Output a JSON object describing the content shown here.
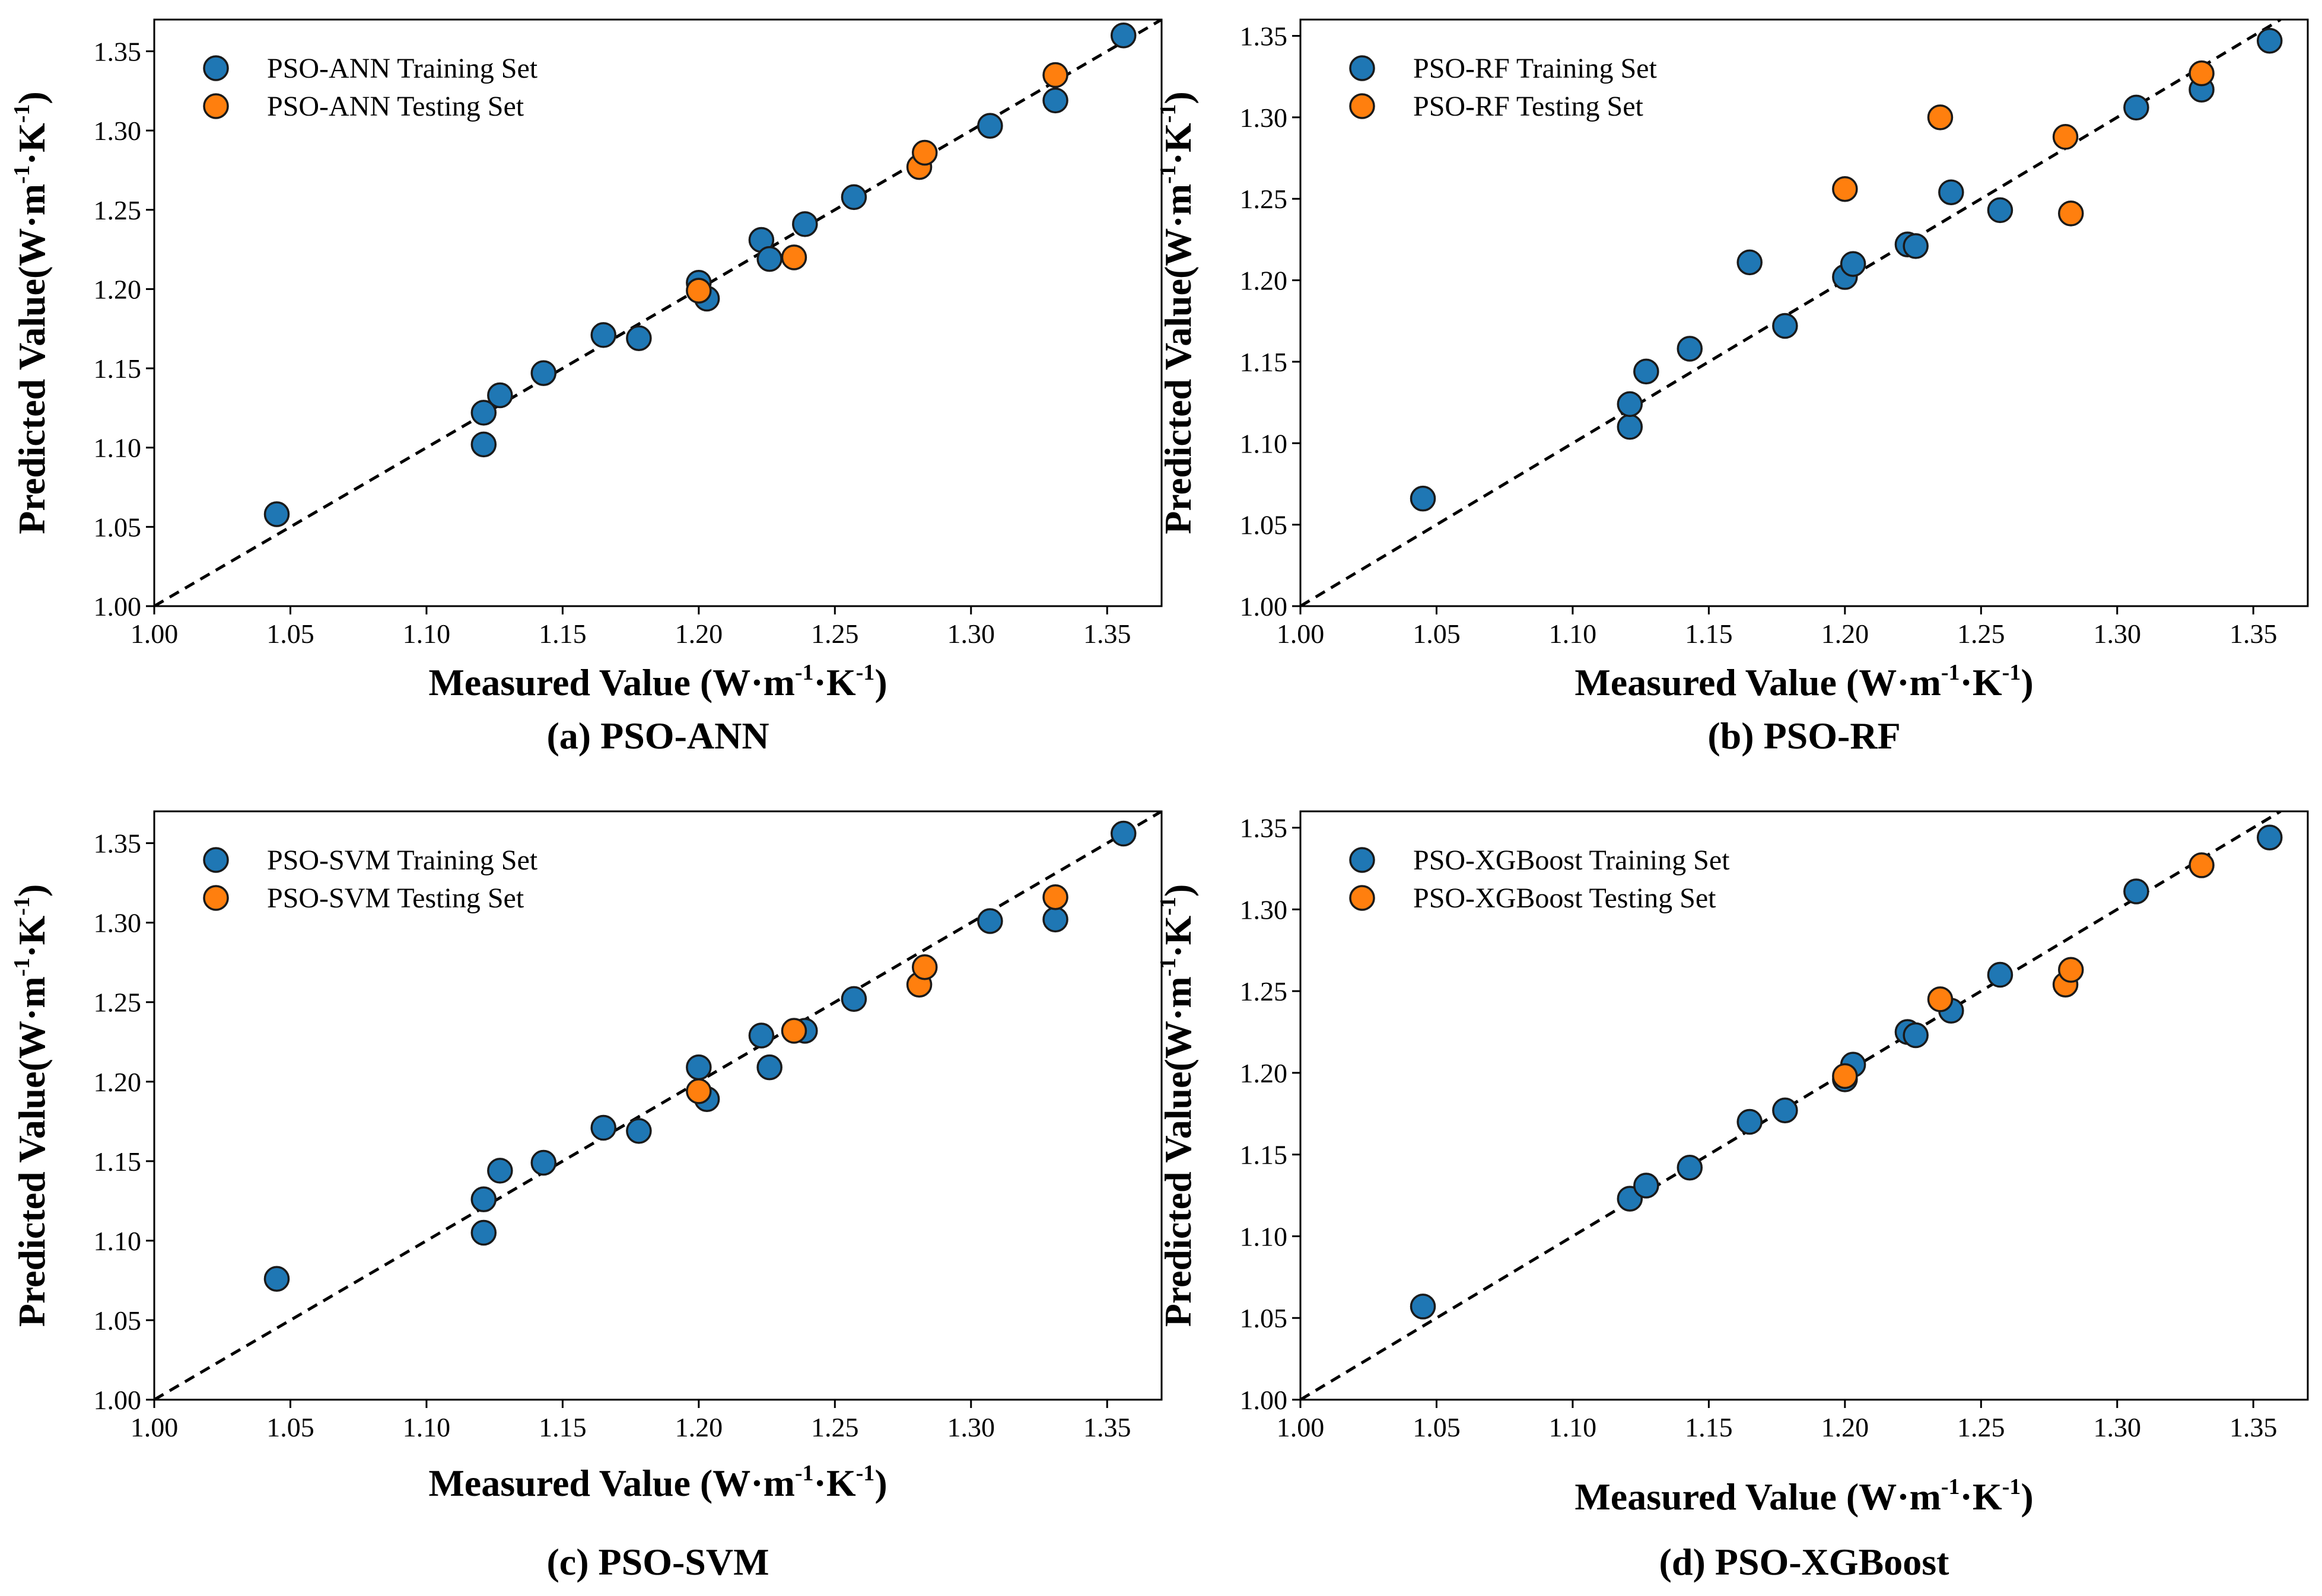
{
  "colors": {
    "train": "#1f77b4",
    "test": "#ff7f0e",
    "edge": "#1a1a1a",
    "diag": "#000000"
  },
  "chart_data": [
    {
      "type": "scatter",
      "caption": "(a) PSO-ANN",
      "xlabel": {
        "main": "Measured Value (W·m",
        "sup1": "-1",
        "mid": "·K",
        "sup2": "-1",
        "end": ")"
      },
      "ylabel": {
        "main": "Predicted Value(W·m",
        "sup1": "-1",
        "mid": "·K",
        "sup2": "-1",
        "end": ")"
      },
      "xlim": [
        1.0,
        1.37
      ],
      "ylim": [
        1.0,
        1.37
      ],
      "xticks": [
        "1.00",
        "1.05",
        "1.10",
        "1.15",
        "1.20",
        "1.25",
        "1.30",
        "1.35"
      ],
      "yticks": [
        "1.00",
        "1.05",
        "1.10",
        "1.15",
        "1.20",
        "1.25",
        "1.30",
        "1.35"
      ],
      "reference_line": "y = x",
      "series": [
        {
          "name": "PSO-ANN Training Set",
          "color": "#1f77b4",
          "points": [
            [
              1.045,
              1.058
            ],
            [
              1.121,
              1.102
            ],
            [
              1.121,
              1.122
            ],
            [
              1.127,
              1.133
            ],
            [
              1.143,
              1.147
            ],
            [
              1.165,
              1.171
            ],
            [
              1.178,
              1.169
            ],
            [
              1.2,
              1.204
            ],
            [
              1.203,
              1.194
            ],
            [
              1.223,
              1.231
            ],
            [
              1.226,
              1.219
            ],
            [
              1.239,
              1.241
            ],
            [
              1.257,
              1.258
            ],
            [
              1.307,
              1.303
            ],
            [
              1.331,
              1.319
            ],
            [
              1.356,
              1.36
            ]
          ]
        },
        {
          "name": "PSO-ANN Testing Set",
          "color": "#ff7f0e",
          "points": [
            [
              1.2,
              1.199
            ],
            [
              1.235,
              1.22
            ],
            [
              1.281,
              1.277
            ],
            [
              1.283,
              1.286
            ],
            [
              1.331,
              1.335
            ]
          ]
        }
      ]
    },
    {
      "type": "scatter",
      "caption": "(b) PSO-RF",
      "xlabel": {
        "main": "Measured Value (W·m",
        "sup1": "-1",
        "mid": "·K",
        "sup2": "-1",
        "end": ")"
      },
      "ylabel": {
        "main": "Predicted Value(W·m",
        "sup1": "-1",
        "mid": "·K",
        "sup2": "-1",
        "end": ")"
      },
      "xlim": [
        1.0,
        1.37
      ],
      "ylim": [
        1.0,
        1.36
      ],
      "xticks": [
        "1.00",
        "1.05",
        "1.10",
        "1.15",
        "1.20",
        "1.25",
        "1.30",
        "1.35"
      ],
      "yticks": [
        "1.00",
        "1.05",
        "1.10",
        "1.15",
        "1.20",
        "1.25",
        "1.30",
        "1.35"
      ],
      "reference_line": "y = x",
      "series": [
        {
          "name": "PSO-RF Training Set",
          "color": "#1f77b4",
          "points": [
            [
              1.045,
              1.066
            ],
            [
              1.121,
              1.11
            ],
            [
              1.121,
              1.124
            ],
            [
              1.127,
              1.144
            ],
            [
              1.143,
              1.158
            ],
            [
              1.165,
              1.211
            ],
            [
              1.178,
              1.172
            ],
            [
              1.2,
              1.202
            ],
            [
              1.203,
              1.21
            ],
            [
              1.223,
              1.222
            ],
            [
              1.226,
              1.221
            ],
            [
              1.239,
              1.254
            ],
            [
              1.257,
              1.243
            ],
            [
              1.307,
              1.306
            ],
            [
              1.331,
              1.317
            ],
            [
              1.356,
              1.347
            ]
          ]
        },
        {
          "name": "PSO-RF Testing Set",
          "color": "#ff7f0e",
          "points": [
            [
              1.2,
              1.256
            ],
            [
              1.235,
              1.3
            ],
            [
              1.281,
              1.288
            ],
            [
              1.283,
              1.241
            ],
            [
              1.331,
              1.327
            ]
          ]
        }
      ]
    },
    {
      "type": "scatter",
      "caption": "(c) PSO-SVM",
      "xlabel": {
        "main": "Measured Value (W·m",
        "sup1": "-1",
        "mid": "·K",
        "sup2": "-1",
        "end": ")"
      },
      "ylabel": {
        "main": "Predicted Value(W·m",
        "sup1": "-1",
        "mid": "·K",
        "sup2": "-1",
        "end": ")"
      },
      "xlim": [
        1.0,
        1.37
      ],
      "ylim": [
        1.0,
        1.37
      ],
      "xticks": [
        "1.00",
        "1.05",
        "1.10",
        "1.15",
        "1.20",
        "1.25",
        "1.30",
        "1.35"
      ],
      "yticks": [
        "1.00",
        "1.05",
        "1.10",
        "1.15",
        "1.20",
        "1.25",
        "1.30",
        "1.35"
      ],
      "reference_line": "y = x",
      "series": [
        {
          "name": "PSO-SVM Training Set",
          "color": "#1f77b4",
          "points": [
            [
              1.045,
              1.076
            ],
            [
              1.121,
              1.105
            ],
            [
              1.121,
              1.126
            ],
            [
              1.127,
              1.144
            ],
            [
              1.143,
              1.149
            ],
            [
              1.165,
              1.171
            ],
            [
              1.178,
              1.169
            ],
            [
              1.2,
              1.209
            ],
            [
              1.203,
              1.189
            ],
            [
              1.223,
              1.229
            ],
            [
              1.226,
              1.209
            ],
            [
              1.239,
              1.232
            ],
            [
              1.257,
              1.252
            ],
            [
              1.307,
              1.301
            ],
            [
              1.331,
              1.302
            ],
            [
              1.356,
              1.356
            ]
          ]
        },
        {
          "name": "PSO-SVM Testing Set",
          "color": "#ff7f0e",
          "points": [
            [
              1.2,
              1.194
            ],
            [
              1.235,
              1.232
            ],
            [
              1.281,
              1.261
            ],
            [
              1.283,
              1.272
            ],
            [
              1.331,
              1.316
            ]
          ]
        }
      ]
    },
    {
      "type": "scatter",
      "caption": "(d) PSO-XGBoost",
      "xlabel": {
        "main": "Measured Value (W·m",
        "sup1": "-1",
        "mid": "·K",
        "sup2": "-1",
        "end": ")"
      },
      "ylabel": {
        "main": "Predicted Value(W·m",
        "sup1": "-1",
        "mid": "·K",
        "sup2": "-1",
        "end": ")"
      },
      "xlim": [
        1.0,
        1.37
      ],
      "ylim": [
        1.0,
        1.36
      ],
      "xticks": [
        "1.00",
        "1.05",
        "1.10",
        "1.15",
        "1.20",
        "1.25",
        "1.30",
        "1.35"
      ],
      "yticks": [
        "1.00",
        "1.05",
        "1.10",
        "1.15",
        "1.20",
        "1.25",
        "1.30",
        "1.35"
      ],
      "reference_line": "y = x",
      "series": [
        {
          "name": "PSO-XGBoost Training Set",
          "color": "#1f77b4",
          "points": [
            [
              1.045,
              1.057
            ],
            [
              1.121,
              1.123
            ],
            [
              1.127,
              1.131
            ],
            [
              1.143,
              1.142
            ],
            [
              1.165,
              1.17
            ],
            [
              1.178,
              1.177
            ],
            [
              1.2,
              1.196
            ],
            [
              1.203,
              1.205
            ],
            [
              1.223,
              1.225
            ],
            [
              1.226,
              1.223
            ],
            [
              1.239,
              1.238
            ],
            [
              1.257,
              1.26
            ],
            [
              1.307,
              1.311
            ],
            [
              1.356,
              1.344
            ]
          ]
        },
        {
          "name": "PSO-XGBoost Testing Set",
          "color": "#ff7f0e",
          "points": [
            [
              1.2,
              1.198
            ],
            [
              1.235,
              1.245
            ],
            [
              1.281,
              1.254
            ],
            [
              1.283,
              1.263
            ],
            [
              1.331,
              1.327
            ]
          ]
        }
      ]
    }
  ]
}
